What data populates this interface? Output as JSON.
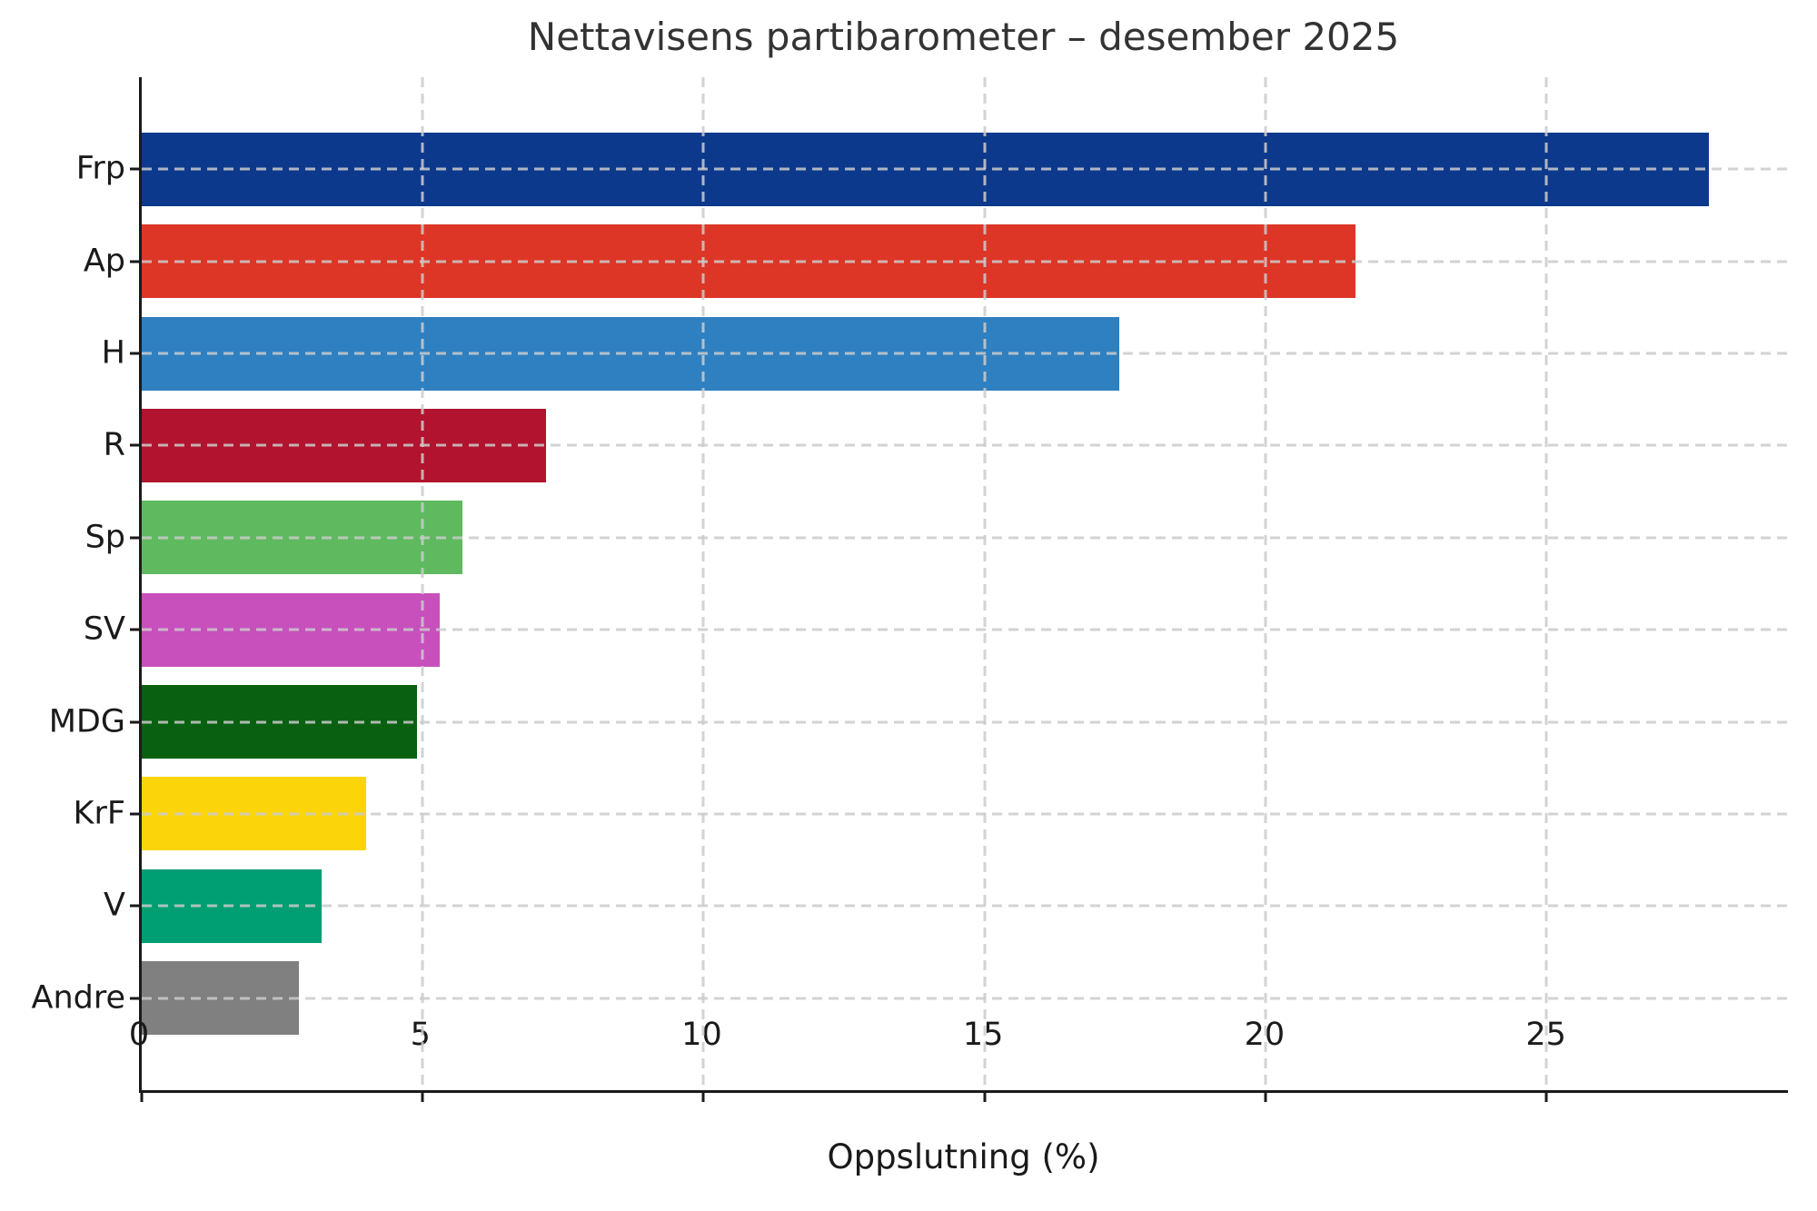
{
  "chart_data": {
    "type": "bar",
    "orientation": "horizontal",
    "title": "Nettavisens partibarometer – desember 2025",
    "xlabel": "Oppslutning (%)",
    "ylabel": "",
    "categories": [
      "Frp",
      "Ap",
      "H",
      "R",
      "Sp",
      "SV",
      "MDG",
      "KrF",
      "V",
      "Andre"
    ],
    "values": [
      27.9,
      21.6,
      17.4,
      7.2,
      5.7,
      5.3,
      4.9,
      4.0,
      3.2,
      2.8
    ],
    "bar_colors": [
      "#0d398c",
      "#dd3627",
      "#2f80c0",
      "#b2132e",
      "#5fba5f",
      "#c750bd",
      "#0a6011",
      "#fbd50a",
      "#009e73",
      "#808080"
    ],
    "xlim": [
      0,
      29.3
    ],
    "xticks": [
      0,
      5,
      10,
      15,
      20,
      25
    ],
    "grid": "dashed gridlines on both axes, drawn over bars",
    "legend": "none",
    "spines": "left and bottom only",
    "grid_color": "#cbcbcb",
    "spine_color": "#1a1a1a",
    "text_color": "#1a1a1a",
    "title_color": "#333333",
    "background_color": "#ffffff"
  }
}
